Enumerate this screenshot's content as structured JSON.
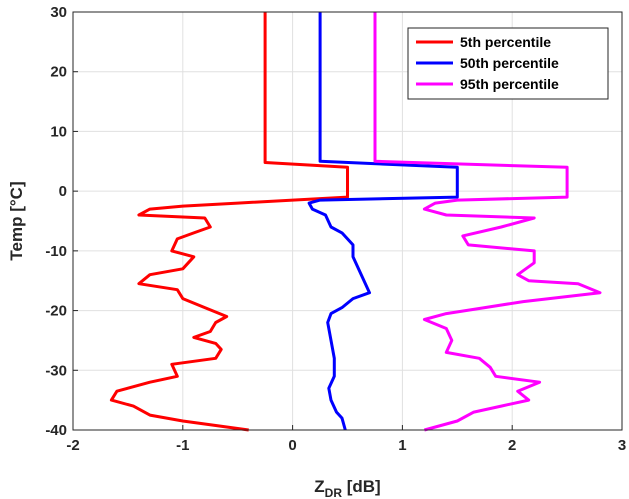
{
  "chart_data": {
    "type": "line",
    "xlabel": "Z",
    "xlabel_sub": "DR",
    "xlabel_unit": " [dB]",
    "ylabel": "Temp [°C]",
    "xlim": [
      -2,
      3
    ],
    "ylim": [
      -40,
      30
    ],
    "xticks": [
      -2,
      -1,
      0,
      1,
      2,
      3
    ],
    "yticks": [
      -40,
      -30,
      -20,
      -10,
      0,
      10,
      20,
      30
    ],
    "grid": true,
    "legend_position": "top-right",
    "series": [
      {
        "name": "5th percentile",
        "color": "#ff0000",
        "points": [
          [
            -0.25,
            30
          ],
          [
            -0.25,
            4.8
          ],
          [
            0.5,
            4
          ],
          [
            0.5,
            -1
          ],
          [
            -0.5,
            -2
          ],
          [
            -1.0,
            -2.5
          ],
          [
            -1.3,
            -3
          ],
          [
            -1.4,
            -4
          ],
          [
            -0.8,
            -4.5
          ],
          [
            -0.75,
            -6
          ],
          [
            -0.9,
            -7
          ],
          [
            -1.05,
            -8
          ],
          [
            -1.1,
            -10
          ],
          [
            -0.9,
            -11
          ],
          [
            -1.0,
            -13
          ],
          [
            -1.3,
            -14
          ],
          [
            -1.4,
            -15.5
          ],
          [
            -1.05,
            -16.5
          ],
          [
            -1.0,
            -18
          ],
          [
            -0.8,
            -19.5
          ],
          [
            -0.6,
            -21
          ],
          [
            -0.7,
            -22
          ],
          [
            -0.75,
            -23.5
          ],
          [
            -0.9,
            -24.5
          ],
          [
            -0.7,
            -25.5
          ],
          [
            -0.65,
            -26.5
          ],
          [
            -0.7,
            -28
          ],
          [
            -1.1,
            -29
          ],
          [
            -1.05,
            -31
          ],
          [
            -1.3,
            -32
          ],
          [
            -1.6,
            -33.5
          ],
          [
            -1.65,
            -35
          ],
          [
            -1.45,
            -36
          ],
          [
            -1.3,
            -37.5
          ],
          [
            -1.0,
            -38.5
          ],
          [
            -0.4,
            -40
          ]
        ]
      },
      {
        "name": "50th percentile",
        "color": "#0000ff",
        "points": [
          [
            0.25,
            30
          ],
          [
            0.25,
            5
          ],
          [
            1.5,
            4
          ],
          [
            1.5,
            -1
          ],
          [
            0.25,
            -1.5
          ],
          [
            0.15,
            -2
          ],
          [
            0.18,
            -3
          ],
          [
            0.3,
            -4
          ],
          [
            0.35,
            -6
          ],
          [
            0.45,
            -7
          ],
          [
            0.5,
            -8
          ],
          [
            0.55,
            -9
          ],
          [
            0.55,
            -11
          ],
          [
            0.6,
            -13
          ],
          [
            0.7,
            -17
          ],
          [
            0.55,
            -18
          ],
          [
            0.45,
            -19.5
          ],
          [
            0.35,
            -20.5
          ],
          [
            0.32,
            -22
          ],
          [
            0.35,
            -25
          ],
          [
            0.38,
            -28
          ],
          [
            0.38,
            -31
          ],
          [
            0.33,
            -33
          ],
          [
            0.35,
            -35
          ],
          [
            0.4,
            -37
          ],
          [
            0.45,
            -38
          ],
          [
            0.48,
            -40
          ]
        ]
      },
      {
        "name": "95th percentile",
        "color": "#ff00ff",
        "points": [
          [
            0.75,
            30
          ],
          [
            0.75,
            5
          ],
          [
            2.5,
            4
          ],
          [
            2.5,
            -1
          ],
          [
            1.5,
            -1.5
          ],
          [
            1.3,
            -2
          ],
          [
            1.2,
            -3
          ],
          [
            1.4,
            -4
          ],
          [
            2.2,
            -4.5
          ],
          [
            1.9,
            -6
          ],
          [
            1.55,
            -7.5
          ],
          [
            1.6,
            -9
          ],
          [
            2.2,
            -10
          ],
          [
            2.2,
            -12
          ],
          [
            2.05,
            -14
          ],
          [
            2.15,
            -15
          ],
          [
            2.6,
            -15.5
          ],
          [
            2.8,
            -17
          ],
          [
            2.1,
            -18.5
          ],
          [
            1.75,
            -19.5
          ],
          [
            1.4,
            -20.5
          ],
          [
            1.2,
            -21.5
          ],
          [
            1.4,
            -23
          ],
          [
            1.45,
            -25
          ],
          [
            1.4,
            -27
          ],
          [
            1.7,
            -28
          ],
          [
            1.8,
            -29.5
          ],
          [
            1.85,
            -31
          ],
          [
            2.25,
            -32
          ],
          [
            2.05,
            -33.5
          ],
          [
            2.15,
            -35
          ],
          [
            1.9,
            -36
          ],
          [
            1.65,
            -37
          ],
          [
            1.5,
            -38.5
          ],
          [
            1.2,
            -40
          ]
        ]
      }
    ]
  }
}
